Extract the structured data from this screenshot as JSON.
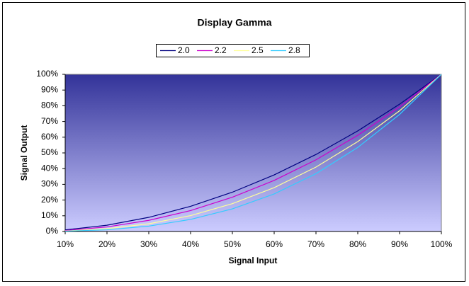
{
  "chart_data": {
    "type": "line",
    "title": "Display Gamma",
    "xlabel": "Signal Input",
    "ylabel": "Signal Output",
    "x": [
      10,
      20,
      30,
      40,
      50,
      60,
      70,
      80,
      90,
      100
    ],
    "series": [
      {
        "name": "2.0",
        "color": "#000080",
        "values": [
          1,
          4,
          9,
          16,
          25,
          36,
          49,
          64,
          81,
          100
        ]
      },
      {
        "name": "2.2",
        "color": "#cc00cc",
        "values": [
          0.6,
          2.9,
          7.1,
          13.3,
          21.8,
          32.5,
          45.6,
          61.2,
          79.3,
          100
        ]
      },
      {
        "name": "2.5",
        "color": "#ffff99",
        "values": [
          0.3,
          1.8,
          4.9,
          10.1,
          17.7,
          27.9,
          41.0,
          57.2,
          76.8,
          100
        ]
      },
      {
        "name": "2.8",
        "color": "#33ccff",
        "values": [
          0.2,
          1.1,
          3.4,
          7.7,
          14.4,
          23.9,
          36.8,
          53.5,
          74.5,
          100
        ]
      }
    ],
    "xlim": [
      10,
      100
    ],
    "ylim": [
      0,
      100
    ],
    "xticks": [
      {
        "value": 10,
        "label": "10%"
      },
      {
        "value": 20,
        "label": "20%"
      },
      {
        "value": 30,
        "label": "30%"
      },
      {
        "value": 40,
        "label": "40%"
      },
      {
        "value": 50,
        "label": "50%"
      },
      {
        "value": 60,
        "label": "60%"
      },
      {
        "value": 70,
        "label": "70%"
      },
      {
        "value": 80,
        "label": "80%"
      },
      {
        "value": 90,
        "label": "90%"
      },
      {
        "value": 100,
        "label": "100%"
      }
    ],
    "yticks": [
      {
        "value": 0,
        "label": "0%"
      },
      {
        "value": 10,
        "label": "10%"
      },
      {
        "value": 20,
        "label": "20%"
      },
      {
        "value": 30,
        "label": "30%"
      },
      {
        "value": 40,
        "label": "40%"
      },
      {
        "value": 50,
        "label": "50%"
      },
      {
        "value": 60,
        "label": "60%"
      },
      {
        "value": 70,
        "label": "70%"
      },
      {
        "value": 80,
        "label": "80%"
      },
      {
        "value": 90,
        "label": "90%"
      },
      {
        "value": 100,
        "label": "100%"
      }
    ],
    "grid": false,
    "legend": "top"
  }
}
